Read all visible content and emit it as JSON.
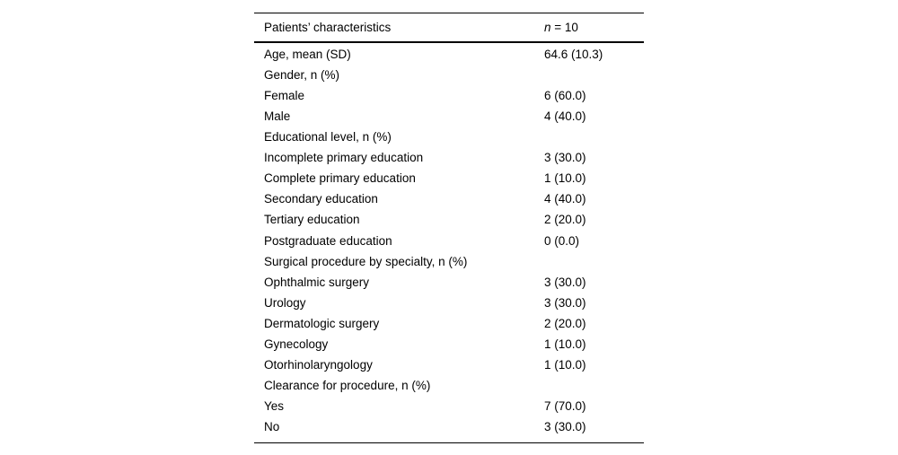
{
  "page": {
    "background": "#ffffff"
  },
  "table": {
    "colors": {
      "text": "#000000",
      "rule": "#000000"
    },
    "header": {
      "col1": "Patients’ characteristics",
      "col2_italic": "n",
      "col2_rest": " = 10"
    },
    "rows": [
      {
        "label": "Age, mean (SD)",
        "value": "64.6 (10.3)"
      },
      {
        "label": "Gender, n (%)",
        "value": ""
      },
      {
        "label": "Female",
        "value": "6 (60.0)"
      },
      {
        "label": "Male",
        "value": "4 (40.0)"
      },
      {
        "label": "Educational level, n (%)",
        "value": ""
      },
      {
        "label": "Incomplete primary education",
        "value": "3 (30.0)"
      },
      {
        "label": "Complete primary education",
        "value": "1 (10.0)"
      },
      {
        "label": "Secondary education",
        "value": "4 (40.0)"
      },
      {
        "label": "Tertiary education",
        "value": "2 (20.0)"
      },
      {
        "label": "Postgraduate education",
        "value": "0 (0.0)"
      },
      {
        "label": "Surgical procedure by specialty, n (%)",
        "value": ""
      },
      {
        "label": "Ophthalmic surgery",
        "value": "3 (30.0)"
      },
      {
        "label": "Urology",
        "value": "3 (30.0)"
      },
      {
        "label": "Dermatologic surgery",
        "value": "2 (20.0)"
      },
      {
        "label": "Gynecology",
        "value": "1 (10.0)"
      },
      {
        "label": "Otorhinolaryngology",
        "value": "1 (10.0)"
      },
      {
        "label": "Clearance for procedure, n (%)",
        "value": ""
      },
      {
        "label": "Yes",
        "value": "7 (70.0)"
      },
      {
        "label": "No",
        "value": "3 (30.0)"
      }
    ]
  }
}
